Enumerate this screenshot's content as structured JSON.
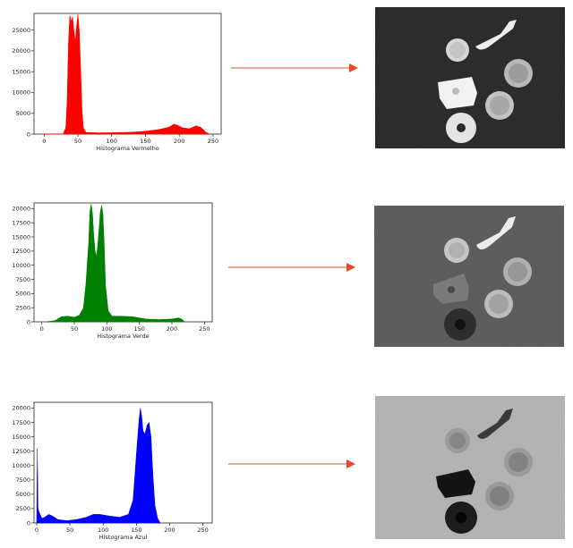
{
  "chart_data": [
    {
      "type": "area",
      "xlabel": "Histograma Vermelho",
      "color": "#ff0000",
      "xlim": [
        -15,
        262
      ],
      "ylim": [
        0,
        29000
      ],
      "xticks": [
        0,
        50,
        100,
        150,
        200,
        250
      ],
      "yticks": [
        0,
        5000,
        10000,
        15000,
        20000,
        25000
      ],
      "points": [
        [
          0,
          0
        ],
        [
          28,
          0
        ],
        [
          32,
          1500
        ],
        [
          34,
          8000
        ],
        [
          36,
          22000
        ],
        [
          38,
          28500
        ],
        [
          40,
          27000
        ],
        [
          42,
          28200
        ],
        [
          44,
          25000
        ],
        [
          46,
          22000
        ],
        [
          48,
          26000
        ],
        [
          50,
          28800
        ],
        [
          52,
          25000
        ],
        [
          54,
          16000
        ],
        [
          56,
          6000
        ],
        [
          58,
          1500
        ],
        [
          62,
          400
        ],
        [
          80,
          300
        ],
        [
          100,
          350
        ],
        [
          130,
          450
        ],
        [
          150,
          700
        ],
        [
          170,
          1100
        ],
        [
          185,
          1700
        ],
        [
          192,
          2400
        ],
        [
          198,
          2100
        ],
        [
          205,
          1500
        ],
        [
          215,
          1300
        ],
        [
          225,
          2000
        ],
        [
          232,
          1600
        ],
        [
          240,
          400
        ],
        [
          245,
          0
        ]
      ]
    },
    {
      "type": "area",
      "xlabel": "Histograma Verde",
      "color": "#008000",
      "xlim": [
        -12,
        262
      ],
      "ylim": [
        0,
        21000
      ],
      "xticks": [
        0,
        50,
        100,
        150,
        200,
        250
      ],
      "yticks": [
        0,
        2500,
        5000,
        7500,
        10000,
        12500,
        15000,
        17500,
        20000
      ],
      "points": [
        [
          0,
          0
        ],
        [
          5,
          0
        ],
        [
          20,
          200
        ],
        [
          30,
          900
        ],
        [
          40,
          1000
        ],
        [
          50,
          800
        ],
        [
          58,
          1200
        ],
        [
          64,
          2500
        ],
        [
          68,
          7000
        ],
        [
          72,
          14000
        ],
        [
          74,
          19500
        ],
        [
          76,
          20800
        ],
        [
          78,
          19000
        ],
        [
          80,
          15000
        ],
        [
          82,
          12500
        ],
        [
          84,
          11500
        ],
        [
          86,
          13500
        ],
        [
          88,
          16500
        ],
        [
          90,
          19500
        ],
        [
          92,
          20600
        ],
        [
          94,
          19000
        ],
        [
          96,
          13500
        ],
        [
          98,
          6500
        ],
        [
          102,
          2000
        ],
        [
          108,
          1000
        ],
        [
          120,
          1000
        ],
        [
          140,
          900
        ],
        [
          160,
          500
        ],
        [
          180,
          400
        ],
        [
          200,
          500
        ],
        [
          210,
          700
        ],
        [
          215,
          500
        ],
        [
          220,
          0
        ]
      ]
    },
    {
      "type": "area",
      "xlabel": "Histograma Azul",
      "color": "#0000ff",
      "xlim": [
        -4,
        264
      ],
      "ylim": [
        0,
        21000
      ],
      "xticks": [
        0,
        50,
        100,
        150,
        200,
        250
      ],
      "yticks": [
        0,
        2500,
        5000,
        7500,
        10000,
        12500,
        15000,
        17500,
        20000
      ],
      "points": [
        [
          0,
          0
        ],
        [
          1,
          13000
        ],
        [
          2,
          2500
        ],
        [
          4,
          1800
        ],
        [
          8,
          800
        ],
        [
          12,
          1000
        ],
        [
          18,
          1500
        ],
        [
          24,
          1200
        ],
        [
          32,
          600
        ],
        [
          45,
          400
        ],
        [
          60,
          600
        ],
        [
          75,
          1000
        ],
        [
          85,
          1500
        ],
        [
          95,
          1500
        ],
        [
          110,
          1200
        ],
        [
          125,
          1000
        ],
        [
          138,
          1500
        ],
        [
          145,
          4000
        ],
        [
          150,
          12000
        ],
        [
          154,
          18000
        ],
        [
          156,
          20000
        ],
        [
          158,
          18500
        ],
        [
          160,
          16000
        ],
        [
          163,
          15500
        ],
        [
          166,
          17000
        ],
        [
          169,
          17500
        ],
        [
          172,
          15000
        ],
        [
          175,
          8000
        ],
        [
          178,
          3000
        ],
        [
          182,
          800
        ],
        [
          186,
          0
        ]
      ]
    }
  ]
}
